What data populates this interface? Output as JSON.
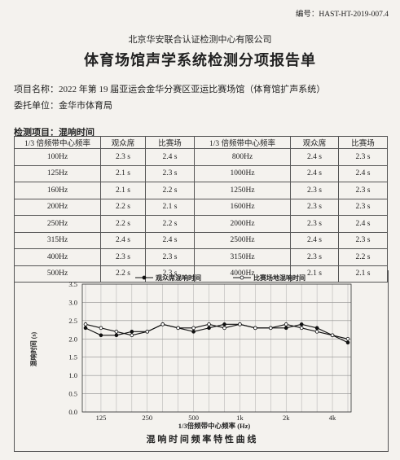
{
  "header": {
    "doc_number": "编号：HAST-HT-2019-007.4",
    "organization": "北京华安联合认证检测中心有限公司",
    "title": "体育场馆声学系统检测分项报告单"
  },
  "project": {
    "name_line": "项目名称：2022 年第 19 届亚运会金华分赛区亚运比赛场馆（体育馆扩声系统）",
    "client_line": "委托单位：金华市体育局"
  },
  "section_title": "检测项目：混响时间",
  "table": {
    "headers": [
      "1/3 倍频带中心频率",
      "观众席",
      "比赛场",
      "1/3 倍频带中心频率",
      "观众席",
      "比赛场"
    ],
    "rows": [
      [
        "100Hz",
        "2.3 s",
        "2.4 s",
        "800Hz",
        "2.4 s",
        "2.3 s"
      ],
      [
        "125Hz",
        "2.1 s",
        "2.3 s",
        "1000Hz",
        "2.4 s",
        "2.4 s"
      ],
      [
        "160Hz",
        "2.1 s",
        "2.2 s",
        "1250Hz",
        "2.3 s",
        "2.3 s"
      ],
      [
        "200Hz",
        "2.2 s",
        "2.1 s",
        "1600Hz",
        "2.3 s",
        "2.3 s"
      ],
      [
        "250Hz",
        "2.2 s",
        "2.2 s",
        "2000Hz",
        "2.3 s",
        "2.4 s"
      ],
      [
        "315Hz",
        "2.4 s",
        "2.4 s",
        "2500Hz",
        "2.4 s",
        "2.3 s"
      ],
      [
        "400Hz",
        "2.3 s",
        "2.3 s",
        "3150Hz",
        "2.3 s",
        "2.2 s"
      ],
      [
        "500Hz",
        "2.2 s",
        "2.3 s",
        "4000Hz",
        "2.1 s",
        "2.1 s"
      ]
    ]
  },
  "chart_data": {
    "type": "line",
    "title": "",
    "xlabel": "1/3倍频带中心频率 (Hz)",
    "ylabel": "混响时间 (s)",
    "ylim": [
      0,
      3.5
    ],
    "yticks": [
      "0.0",
      "0.5",
      "1.0",
      "1.5",
      "2.0",
      "2.5",
      "3.0",
      "3.5"
    ],
    "xtick_labels": [
      "125",
      "250",
      "500",
      "1k",
      "2k",
      "4k"
    ],
    "x": [
      "100",
      "125",
      "160",
      "200",
      "250",
      "315",
      "400",
      "500",
      "630",
      "800",
      "1000",
      "1250",
      "1600",
      "2000",
      "2500",
      "3150",
      "4000",
      "5000"
    ],
    "series": [
      {
        "name": "观众席混响时间",
        "marker": "filled",
        "values": [
          2.3,
          2.1,
          2.1,
          2.2,
          2.2,
          2.4,
          2.3,
          2.2,
          2.3,
          2.4,
          2.4,
          2.3,
          2.3,
          2.3,
          2.4,
          2.3,
          2.1,
          1.9
        ]
      },
      {
        "name": "比赛场地混响时间",
        "marker": "hollow",
        "values": [
          2.4,
          2.3,
          2.2,
          2.1,
          2.2,
          2.4,
          2.3,
          2.3,
          2.4,
          2.3,
          2.4,
          2.3,
          2.3,
          2.4,
          2.3,
          2.2,
          2.1,
          2.0
        ]
      }
    ],
    "grid": true,
    "legend": "top",
    "caption": "混 响 时 间 频 率 特 性 曲 线"
  }
}
